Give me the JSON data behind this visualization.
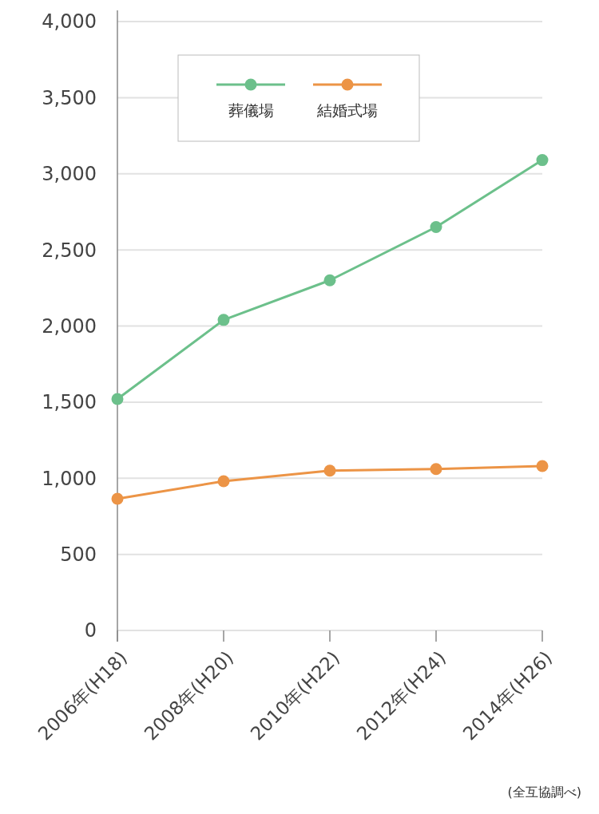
{
  "chart_data": {
    "type": "line",
    "categories": [
      "2006年(H18)",
      "2008年(H20)",
      "2010年(H22)",
      "2012年(H24)",
      "2014年(H26)"
    ],
    "series": [
      {
        "name": "葬儀場",
        "color": "#6cc08b",
        "values": [
          1520,
          2040,
          2300,
          2650,
          3090
        ]
      },
      {
        "name": "結婚式場",
        "color": "#ec9446",
        "values": [
          865,
          980,
          1050,
          1060,
          1080
        ]
      }
    ],
    "ylim": [
      0,
      4000
    ],
    "yticks": [
      {
        "value": 0,
        "label": "0"
      },
      {
        "value": 500,
        "label": "500"
      },
      {
        "value": 1000,
        "label": "1,000"
      },
      {
        "value": 1500,
        "label": "1,500"
      },
      {
        "value": 2000,
        "label": "2,000"
      },
      {
        "value": 2500,
        "label": "2,500"
      },
      {
        "value": 3000,
        "label": "3,000"
      },
      {
        "value": 3500,
        "label": "3,500"
      },
      {
        "value": 4000,
        "label": "4,000"
      }
    ],
    "grid": "y",
    "legend": "top",
    "marker": "circle",
    "line_style": "solid",
    "annotations": [
      "(全互協調べ)"
    ]
  }
}
